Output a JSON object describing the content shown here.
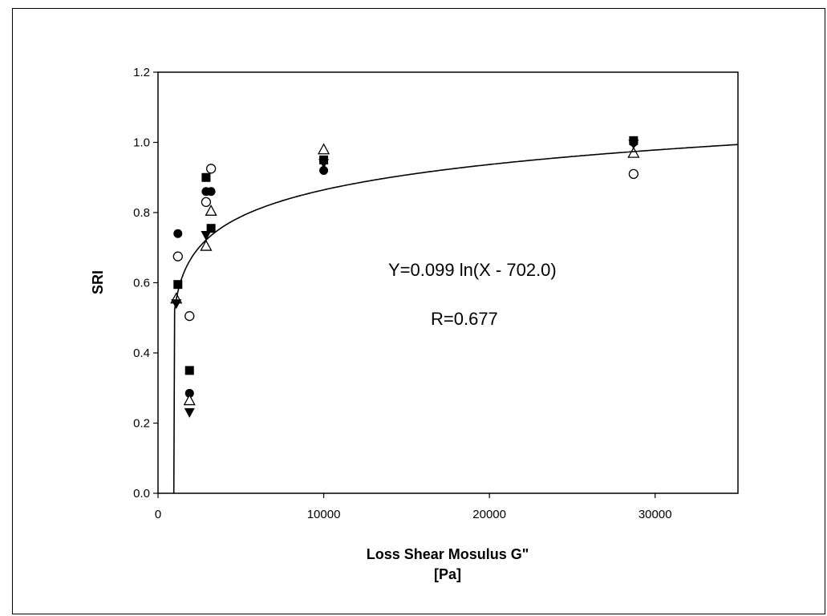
{
  "chart_data": {
    "type": "scatter",
    "xlabel_line1": "Loss Shear Mosulus G\"",
    "xlabel_line2": "[Pa]",
    "ylabel": "SRI",
    "xlim": [
      0,
      35000
    ],
    "ylim": [
      0.0,
      1.2
    ],
    "x_ticks": [
      0,
      10000,
      20000,
      30000
    ],
    "x_tick_labels": [
      "0",
      "10000",
      "20000",
      "30000"
    ],
    "y_ticks": [
      0.0,
      0.2,
      0.4,
      0.6,
      0.8,
      1.0,
      1.2
    ],
    "y_tick_labels": [
      "0.0",
      "0.2",
      "0.4",
      "0.6",
      "0.8",
      "1.0",
      "1.2"
    ],
    "grid": false,
    "legend": "none",
    "annotations": [
      "Y=0.099 ln(X - 702.0)",
      "R=0.677"
    ],
    "fit": {
      "type": "log",
      "a": 0.099,
      "c": 702.0,
      "x_from": 1000,
      "x_to": 35000
    },
    "series": [
      {
        "marker": "filled-circle",
        "points": [
          [
            1200,
            0.74
          ],
          [
            1900,
            0.285
          ],
          [
            2900,
            0.86
          ],
          [
            3200,
            0.86
          ],
          [
            10000,
            0.92
          ],
          [
            28700,
            1.0
          ]
        ]
      },
      {
        "marker": "open-circle",
        "points": [
          [
            1200,
            0.675
          ],
          [
            1900,
            0.505
          ],
          [
            2900,
            0.83
          ],
          [
            3200,
            0.925
          ],
          [
            28700,
            0.91
          ]
        ]
      },
      {
        "marker": "filled-square",
        "points": [
          [
            1200,
            0.595
          ],
          [
            1900,
            0.35
          ],
          [
            2900,
            0.9
          ],
          [
            3200,
            0.755
          ],
          [
            10000,
            0.95
          ],
          [
            28700,
            1.005
          ]
        ]
      },
      {
        "marker": "open-triangle",
        "points": [
          [
            1100,
            0.555
          ],
          [
            1900,
            0.265
          ],
          [
            2900,
            0.705
          ],
          [
            3200,
            0.805
          ],
          [
            10000,
            0.98
          ],
          [
            28700,
            0.97
          ]
        ]
      },
      {
        "marker": "filled-triangle-down",
        "points": [
          [
            1100,
            0.54
          ],
          [
            1900,
            0.23
          ],
          [
            2900,
            0.735
          ],
          [
            10000,
            0.94
          ],
          [
            28700,
            0.995
          ]
        ]
      }
    ]
  }
}
